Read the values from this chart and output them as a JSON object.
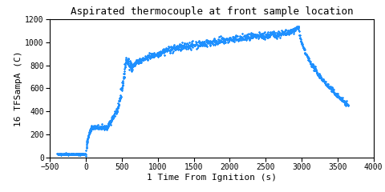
{
  "title": "Aspirated thermocouple at front sample location",
  "xlabel": "1 Time From Ignition (s)",
  "ylabel": "16 TFSampA (C)",
  "xlim": [
    -500,
    4000
  ],
  "ylim": [
    0,
    1200
  ],
  "xticks": [
    -500,
    0,
    500,
    1000,
    1500,
    2000,
    2500,
    3000,
    3500,
    4000
  ],
  "yticks": [
    0,
    200,
    400,
    600,
    800,
    1000,
    1200
  ],
  "line_color": "#1e90ff",
  "title_fontsize": 9,
  "label_fontsize": 8,
  "tick_fontsize": 7
}
